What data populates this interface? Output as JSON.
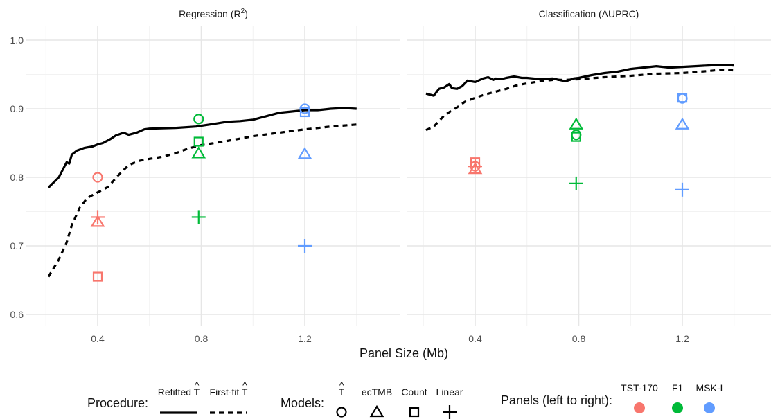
{
  "chart_data": {
    "type": "scatter",
    "xlabel": "Panel Size (Mb)",
    "x_ticks": [
      "0.4",
      "0.8",
      "1.2"
    ],
    "y_ticks": [
      "0.6",
      "0.7",
      "0.8",
      "0.9",
      "1.0"
    ],
    "xlim": [
      0.2,
      1.4
    ],
    "ylim": [
      0.58,
      1.02
    ],
    "grid": true,
    "facets": [
      {
        "title_main": "Regression (R",
        "title_sup": "2",
        "title_end": ")",
        "lines": [
          {
            "procedure": "refitted",
            "x": [
              0.21,
              0.25,
              0.28,
              0.29,
              0.3,
              0.32,
              0.35,
              0.38,
              0.4,
              0.42,
              0.45,
              0.47,
              0.5,
              0.52,
              0.55,
              0.58,
              0.6,
              0.7,
              0.78,
              0.85,
              0.9,
              0.95,
              1.0,
              1.05,
              1.1,
              1.15,
              1.2,
              1.25,
              1.3,
              1.35,
              1.4
            ],
            "y": [
              0.785,
              0.8,
              0.822,
              0.82,
              0.833,
              0.839,
              0.843,
              0.845,
              0.848,
              0.85,
              0.856,
              0.861,
              0.865,
              0.862,
              0.865,
              0.87,
              0.871,
              0.872,
              0.874,
              0.878,
              0.881,
              0.882,
              0.884,
              0.889,
              0.894,
              0.896,
              0.898,
              0.898,
              0.9,
              0.901,
              0.9
            ]
          },
          {
            "procedure": "first_fit",
            "x": [
              0.21,
              0.25,
              0.28,
              0.3,
              0.33,
              0.36,
              0.4,
              0.44,
              0.48,
              0.52,
              0.56,
              0.6,
              0.65,
              0.7,
              0.75,
              0.8,
              0.9,
              1.0,
              1.1,
              1.2,
              1.3,
              1.4
            ],
            "y": [
              0.655,
              0.68,
              0.705,
              0.73,
              0.755,
              0.77,
              0.778,
              0.786,
              0.803,
              0.818,
              0.824,
              0.827,
              0.83,
              0.835,
              0.842,
              0.847,
              0.853,
              0.86,
              0.865,
              0.87,
              0.874,
              0.877
            ]
          }
        ],
        "points": [
          {
            "panel": "TST-170",
            "model": "tmb_hat",
            "x": 0.4,
            "y": 0.8
          },
          {
            "panel": "TST-170",
            "model": "ectmb",
            "x": 0.4,
            "y": 0.735
          },
          {
            "panel": "TST-170",
            "model": "count",
            "x": 0.4,
            "y": 0.655
          },
          {
            "panel": "TST-170",
            "model": "linear",
            "x": 0.4,
            "y": 0.742
          },
          {
            "panel": "F1",
            "model": "tmb_hat",
            "x": 0.79,
            "y": 0.885
          },
          {
            "panel": "F1",
            "model": "ectmb",
            "x": 0.79,
            "y": 0.835
          },
          {
            "panel": "F1",
            "model": "count",
            "x": 0.79,
            "y": 0.852
          },
          {
            "panel": "F1",
            "model": "linear",
            "x": 0.79,
            "y": 0.742
          },
          {
            "panel": "MSK-I",
            "model": "tmb_hat",
            "x": 1.2,
            "y": 0.9
          },
          {
            "panel": "MSK-I",
            "model": "ectmb",
            "x": 1.2,
            "y": 0.834
          },
          {
            "panel": "MSK-I",
            "model": "count",
            "x": 1.2,
            "y": 0.895
          },
          {
            "panel": "MSK-I",
            "model": "linear",
            "x": 1.2,
            "y": 0.7
          }
        ]
      },
      {
        "title_main": "Classification (AUPRC)",
        "title_sup": "",
        "title_end": "",
        "lines": [
          {
            "procedure": "refitted",
            "x": [
              0.21,
              0.24,
              0.26,
              0.28,
              0.3,
              0.31,
              0.33,
              0.35,
              0.37,
              0.4,
              0.43,
              0.45,
              0.47,
              0.48,
              0.5,
              0.52,
              0.55,
              0.58,
              0.6,
              0.65,
              0.7,
              0.75,
              0.78,
              0.8,
              0.85,
              0.9,
              0.95,
              1.0,
              1.05,
              1.1,
              1.15,
              1.2,
              1.25,
              1.3,
              1.35,
              1.4
            ],
            "y": [
              0.922,
              0.919,
              0.929,
              0.931,
              0.936,
              0.93,
              0.929,
              0.933,
              0.941,
              0.939,
              0.944,
              0.946,
              0.942,
              0.944,
              0.943,
              0.945,
              0.947,
              0.945,
              0.945,
              0.943,
              0.944,
              0.94,
              0.944,
              0.945,
              0.949,
              0.952,
              0.954,
              0.958,
              0.96,
              0.962,
              0.96,
              0.961,
              0.962,
              0.963,
              0.964,
              0.963
            ]
          },
          {
            "procedure": "first_fit",
            "x": [
              0.21,
              0.24,
              0.26,
              0.28,
              0.3,
              0.33,
              0.36,
              0.4,
              0.44,
              0.48,
              0.52,
              0.56,
              0.6,
              0.65,
              0.7,
              0.75,
              0.8,
              0.9,
              1.0,
              1.1,
              1.2,
              1.3,
              1.35,
              1.4
            ],
            "y": [
              0.869,
              0.874,
              0.882,
              0.89,
              0.895,
              0.902,
              0.91,
              0.916,
              0.921,
              0.925,
              0.929,
              0.934,
              0.937,
              0.94,
              0.942,
              0.942,
              0.943,
              0.946,
              0.948,
              0.951,
              0.952,
              0.955,
              0.957,
              0.956
            ]
          }
        ],
        "points": [
          {
            "panel": "TST-170",
            "model": "tmb_hat",
            "x": 0.4,
            "y": 0.816
          },
          {
            "panel": "TST-170",
            "model": "ectmb",
            "x": 0.4,
            "y": 0.812
          },
          {
            "panel": "TST-170",
            "model": "count",
            "x": 0.4,
            "y": 0.822
          },
          {
            "panel": "TST-170",
            "model": "linear",
            "x": 0.4,
            "y": 0.816
          },
          {
            "panel": "F1",
            "model": "tmb_hat",
            "x": 0.79,
            "y": 0.862
          },
          {
            "panel": "F1",
            "model": "ectmb",
            "x": 0.79,
            "y": 0.877
          },
          {
            "panel": "F1",
            "model": "count",
            "x": 0.79,
            "y": 0.859
          },
          {
            "panel": "F1",
            "model": "linear",
            "x": 0.79,
            "y": 0.791
          },
          {
            "panel": "MSK-I",
            "model": "tmb_hat",
            "x": 1.2,
            "y": 0.915
          },
          {
            "panel": "MSK-I",
            "model": "ectmb",
            "x": 1.2,
            "y": 0.877
          },
          {
            "panel": "MSK-I",
            "model": "count",
            "x": 1.2,
            "y": 0.916
          },
          {
            "panel": "MSK-I",
            "model": "linear",
            "x": 1.2,
            "y": 0.782
          }
        ]
      }
    ],
    "panel_colors": {
      "TST-170": "#F8766D",
      "F1": "#00BA38",
      "MSK-I": "#619CFF"
    },
    "legend": {
      "procedure_title": "Procedure:",
      "procedure_items": [
        {
          "key": "refitted",
          "label_main": "Refitted ",
          "label_sym": "T",
          "label_hat": "^",
          "style": "solid"
        },
        {
          "key": "first_fit",
          "label_main": "First-fit ",
          "label_sym": "T",
          "label_hat": "^",
          "style": "dashed"
        }
      ],
      "models_title": "Models:",
      "models_items": [
        {
          "key": "tmb_hat",
          "label_main": "",
          "label_sym": "T",
          "label_hat": "^",
          "shape": "circle"
        },
        {
          "key": "ectmb",
          "label_main": "ecTMB",
          "label_sym": "",
          "label_hat": "",
          "shape": "triangle"
        },
        {
          "key": "count",
          "label_main": "Count",
          "label_sym": "",
          "label_hat": "",
          "shape": "square"
        },
        {
          "key": "linear",
          "label_main": "Linear",
          "label_sym": "",
          "label_hat": "",
          "shape": "plus"
        }
      ],
      "panels_title": "Panels (left to right):",
      "panels_items": [
        "TST-170",
        "F1",
        "MSK-I"
      ]
    }
  }
}
